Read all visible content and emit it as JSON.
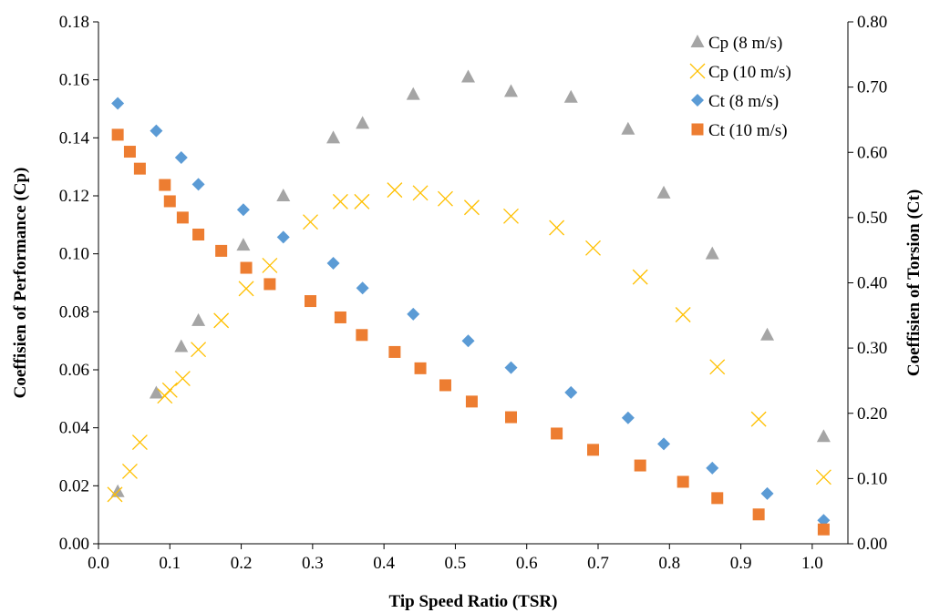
{
  "chart_data": {
    "type": "scatter",
    "xlabel": "Tip Speed Ratio (TSR)",
    "ylabel_left": "Coeffisien of Performance (Cp)",
    "ylabel_right": "Coeffisien of Torsion (Ct)",
    "xlim": [
      0.0,
      1.05
    ],
    "ylim_left": [
      0.0,
      0.18
    ],
    "ylim_right": [
      0.0,
      0.8
    ],
    "x_ticks": [
      "0.0",
      "0.1",
      "0.2",
      "0.3",
      "0.4",
      "0.5",
      "0.6",
      "0.7",
      "0.8",
      "0.9",
      "1.0"
    ],
    "y_left_ticks": [
      "0.00",
      "0.02",
      "0.04",
      "0.06",
      "0.08",
      "0.10",
      "0.12",
      "0.14",
      "0.16",
      "0.18"
    ],
    "y_right_ticks": [
      "0.00",
      "0.10",
      "0.20",
      "0.30",
      "0.40",
      "0.50",
      "0.60",
      "0.70",
      "0.80"
    ],
    "grid": false,
    "legend_position": "top-right",
    "series": [
      {
        "name": "Cp (8 m/s)",
        "axis": "left",
        "marker": "triangle",
        "color": "#a5a5a5",
        "trend": "solid",
        "x": [
          0.027,
          0.081,
          0.116,
          0.14,
          0.203,
          0.259,
          0.329,
          0.37,
          0.441,
          0.518,
          0.578,
          0.662,
          0.742,
          0.792,
          0.86,
          0.937,
          1.016
        ],
        "y": [
          0.018,
          0.052,
          0.068,
          0.077,
          0.103,
          0.12,
          0.14,
          0.145,
          0.155,
          0.161,
          0.156,
          0.154,
          0.143,
          0.121,
          0.1,
          0.072,
          0.037
        ]
      },
      {
        "name": "Cp (10 m/s)",
        "axis": "left",
        "marker": "x",
        "color": "#ffc000",
        "trend": "solid",
        "x": [
          0.023,
          0.044,
          0.058,
          0.093,
          0.1,
          0.118,
          0.14,
          0.172,
          0.207,
          0.24,
          0.297,
          0.339,
          0.369,
          0.415,
          0.451,
          0.486,
          0.523,
          0.578,
          0.642,
          0.693,
          0.759,
          0.819,
          0.867,
          0.925,
          1.016
        ],
        "y": [
          0.017,
          0.025,
          0.035,
          0.051,
          0.053,
          0.057,
          0.067,
          0.077,
          0.088,
          0.096,
          0.111,
          0.118,
          0.118,
          0.122,
          0.121,
          0.119,
          0.116,
          0.113,
          0.109,
          0.102,
          0.092,
          0.079,
          0.061,
          0.043,
          0.023
        ]
      },
      {
        "name": "Ct (8 m/s)",
        "axis": "right",
        "marker": "diamond",
        "color": "#5b9bd5",
        "trend": "dashed",
        "x": [
          0.027,
          0.081,
          0.116,
          0.14,
          0.203,
          0.259,
          0.329,
          0.37,
          0.441,
          0.518,
          0.578,
          0.662,
          0.742,
          0.792,
          0.86,
          0.937,
          1.016
        ],
        "y": [
          0.675,
          0.633,
          0.592,
          0.551,
          0.512,
          0.47,
          0.43,
          0.392,
          0.352,
          0.311,
          0.27,
          0.232,
          0.193,
          0.153,
          0.116,
          0.077,
          0.036
        ]
      },
      {
        "name": "Ct (10 m/s)",
        "axis": "right",
        "marker": "square",
        "color": "#ed7d31",
        "trend": "dashed",
        "x": [
          0.027,
          0.044,
          0.058,
          0.093,
          0.1,
          0.118,
          0.14,
          0.172,
          0.207,
          0.24,
          0.297,
          0.339,
          0.369,
          0.415,
          0.451,
          0.486,
          0.523,
          0.578,
          0.642,
          0.693,
          0.759,
          0.819,
          0.867,
          0.925,
          1.016
        ],
        "y": [
          0.627,
          0.601,
          0.575,
          0.55,
          0.525,
          0.5,
          0.474,
          0.449,
          0.423,
          0.398,
          0.372,
          0.347,
          0.32,
          0.294,
          0.269,
          0.243,
          0.218,
          0.194,
          0.169,
          0.144,
          0.12,
          0.095,
          0.07,
          0.045,
          0.022
        ]
      }
    ]
  }
}
